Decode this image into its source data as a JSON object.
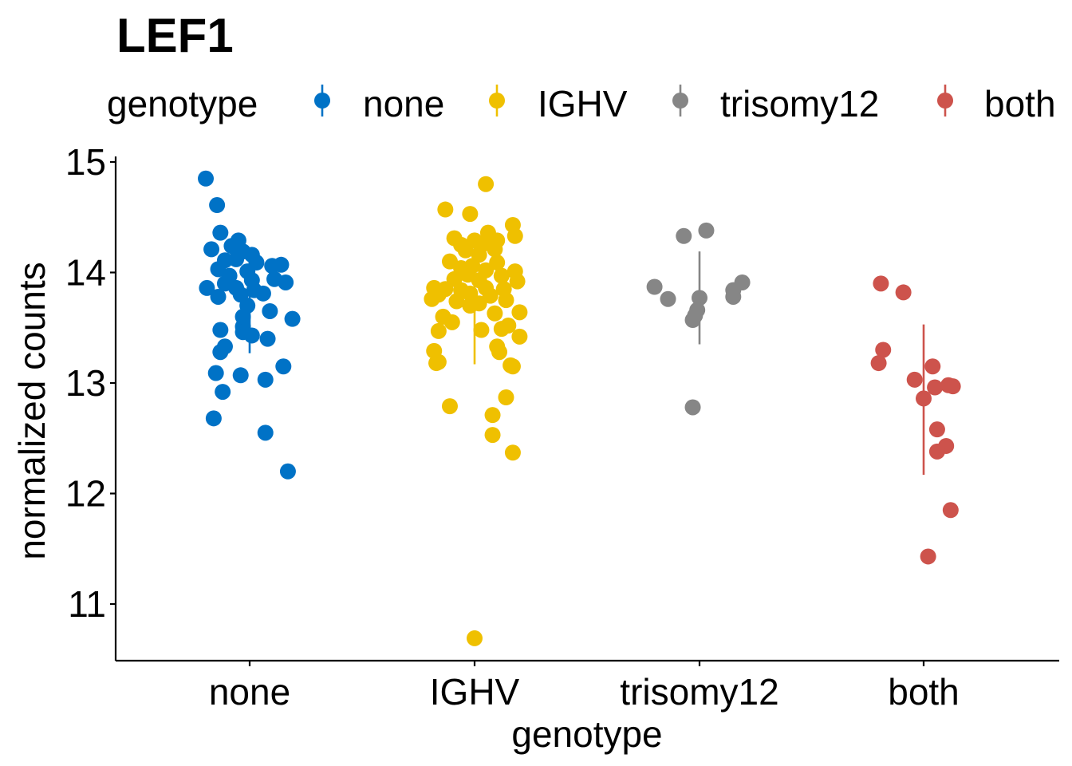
{
  "chart_data": {
    "type": "scatter",
    "title": "LEF1",
    "xlabel": "genotype",
    "ylabel": "normalized counts",
    "ylim": [
      10.5,
      15.05
    ],
    "yticks": [
      11,
      12,
      13,
      14,
      15
    ],
    "grid": false,
    "legend": {
      "title": "genotype",
      "placement": "top",
      "items": [
        "none",
        "IGHV",
        "trisomy12",
        "both"
      ]
    },
    "categories": [
      "none",
      "IGHV",
      "trisomy12",
      "both"
    ],
    "colors": {
      "none": "#0072c6",
      "IGHV": "#efc000",
      "trisomy12": "#868686",
      "both": "#cd534c"
    },
    "series": [
      {
        "name": "none",
        "summary": {
          "mean": 13.73,
          "lower": 13.27,
          "upper": 14.05
        },
        "points": [
          {
            "x": -0.195,
            "y": 14.85
          },
          {
            "x": -0.145,
            "y": 14.61
          },
          {
            "x": -0.13,
            "y": 14.36
          },
          {
            "x": -0.17,
            "y": 14.21
          },
          {
            "x": -0.05,
            "y": 14.29
          },
          {
            "x": -0.08,
            "y": 14.24
          },
          {
            "x": -0.03,
            "y": 14.19
          },
          {
            "x": 0.01,
            "y": 14.16
          },
          {
            "x": -0.11,
            "y": 14.11
          },
          {
            "x": -0.06,
            "y": 14.12
          },
          {
            "x": 0.03,
            "y": 14.09
          },
          {
            "x": -0.14,
            "y": 14.03
          },
          {
            "x": -0.01,
            "y": 14.01
          },
          {
            "x": 0.1,
            "y": 14.06
          },
          {
            "x": 0.14,
            "y": 14.07
          },
          {
            "x": -0.09,
            "y": 13.97
          },
          {
            "x": -0.11,
            "y": 13.9
          },
          {
            "x": 0.01,
            "y": 13.93
          },
          {
            "x": 0.11,
            "y": 13.94
          },
          {
            "x": 0.16,
            "y": 13.91
          },
          {
            "x": -0.19,
            "y": 13.86
          },
          {
            "x": -0.06,
            "y": 13.86
          },
          {
            "x": 0.02,
            "y": 13.84
          },
          {
            "x": -0.14,
            "y": 13.78
          },
          {
            "x": -0.04,
            "y": 13.8
          },
          {
            "x": 0.06,
            "y": 13.81
          },
          {
            "x": -0.01,
            "y": 13.7
          },
          {
            "x": 0.09,
            "y": 13.65
          },
          {
            "x": -0.03,
            "y": 13.6
          },
          {
            "x": 0.19,
            "y": 13.58
          },
          {
            "x": -0.03,
            "y": 13.51
          },
          {
            "x": -0.13,
            "y": 13.48
          },
          {
            "x": -0.03,
            "y": 13.46
          },
          {
            "x": 0.01,
            "y": 13.43
          },
          {
            "x": 0.08,
            "y": 13.4
          },
          {
            "x": -0.11,
            "y": 13.33
          },
          {
            "x": -0.13,
            "y": 13.28
          },
          {
            "x": 0.15,
            "y": 13.15
          },
          {
            "x": -0.15,
            "y": 13.09
          },
          {
            "x": -0.04,
            "y": 13.07
          },
          {
            "x": 0.07,
            "y": 13.03
          },
          {
            "x": -0.12,
            "y": 12.92
          },
          {
            "x": -0.16,
            "y": 12.68
          },
          {
            "x": 0.07,
            "y": 12.55
          },
          {
            "x": 0.17,
            "y": 12.2
          }
        ]
      },
      {
        "name": "IGHV",
        "summary": {
          "mean": 13.78,
          "lower": 13.17,
          "upper": 14.25
        },
        "points": [
          {
            "x": 0.05,
            "y": 14.8
          },
          {
            "x": -0.13,
            "y": 14.57
          },
          {
            "x": -0.02,
            "y": 14.53
          },
          {
            "x": 0.17,
            "y": 14.43
          },
          {
            "x": 0.06,
            "y": 14.36
          },
          {
            "x": 0.18,
            "y": 14.33
          },
          {
            "x": -0.09,
            "y": 14.31
          },
          {
            "x": 0.0,
            "y": 14.29
          },
          {
            "x": 0.1,
            "y": 14.29
          },
          {
            "x": -0.06,
            "y": 14.25
          },
          {
            "x": 0.04,
            "y": 14.26
          },
          {
            "x": -0.04,
            "y": 14.2
          },
          {
            "x": 0.02,
            "y": 14.16
          },
          {
            "x": 0.09,
            "y": 14.21
          },
          {
            "x": -0.11,
            "y": 14.1
          },
          {
            "x": 0.1,
            "y": 14.09
          },
          {
            "x": -0.01,
            "y": 14.06
          },
          {
            "x": -0.06,
            "y": 14.04
          },
          {
            "x": 0.05,
            "y": 14.02
          },
          {
            "x": 0.18,
            "y": 14.01
          },
          {
            "x": -0.03,
            "y": 13.98
          },
          {
            "x": 0.12,
            "y": 13.97
          },
          {
            "x": -0.09,
            "y": 13.94
          },
          {
            "x": 0.02,
            "y": 13.93
          },
          {
            "x": 0.19,
            "y": 13.92
          },
          {
            "x": -0.18,
            "y": 13.86
          },
          {
            "x": -0.13,
            "y": 13.85
          },
          {
            "x": -0.06,
            "y": 13.84
          },
          {
            "x": 0.05,
            "y": 13.86
          },
          {
            "x": 0.13,
            "y": 13.85
          },
          {
            "x": -0.16,
            "y": 13.8
          },
          {
            "x": -0.02,
            "y": 13.81
          },
          {
            "x": 0.07,
            "y": 13.79
          },
          {
            "x": -0.19,
            "y": 13.76
          },
          {
            "x": -0.08,
            "y": 13.74
          },
          {
            "x": -0.02,
            "y": 13.7
          },
          {
            "x": 0.02,
            "y": 13.72
          },
          {
            "x": 0.14,
            "y": 13.75
          },
          {
            "x": 0.09,
            "y": 13.63
          },
          {
            "x": 0.2,
            "y": 13.64
          },
          {
            "x": -0.14,
            "y": 13.6
          },
          {
            "x": -0.1,
            "y": 13.55
          },
          {
            "x": 0.15,
            "y": 13.52
          },
          {
            "x": -0.16,
            "y": 13.47
          },
          {
            "x": 0.03,
            "y": 13.48
          },
          {
            "x": 0.12,
            "y": 13.49
          },
          {
            "x": 0.2,
            "y": 13.42
          },
          {
            "x": 0.1,
            "y": 13.33
          },
          {
            "x": -0.18,
            "y": 13.29
          },
          {
            "x": 0.11,
            "y": 13.28
          },
          {
            "x": -0.16,
            "y": 13.19
          },
          {
            "x": -0.17,
            "y": 13.18
          },
          {
            "x": 0.16,
            "y": 13.16
          },
          {
            "x": 0.17,
            "y": 13.15
          },
          {
            "x": 0.14,
            "y": 12.87
          },
          {
            "x": -0.11,
            "y": 12.79
          },
          {
            "x": 0.08,
            "y": 12.71
          },
          {
            "x": 0.08,
            "y": 12.53
          },
          {
            "x": 0.17,
            "y": 12.37
          },
          {
            "x": 0.0,
            "y": 10.69
          }
        ]
      },
      {
        "name": "trisomy12",
        "summary": {
          "mean": 13.77,
          "lower": 13.35,
          "upper": 14.19
        },
        "points": [
          {
            "x": 0.03,
            "y": 14.38
          },
          {
            "x": -0.07,
            "y": 14.33
          },
          {
            "x": 0.19,
            "y": 13.91
          },
          {
            "x": -0.2,
            "y": 13.87
          },
          {
            "x": 0.15,
            "y": 13.84
          },
          {
            "x": -0.14,
            "y": 13.76
          },
          {
            "x": 0.15,
            "y": 13.78
          },
          {
            "x": 0.0,
            "y": 13.77
          },
          {
            "x": -0.01,
            "y": 13.66
          },
          {
            "x": -0.02,
            "y": 13.61
          },
          {
            "x": -0.03,
            "y": 13.57
          },
          {
            "x": -0.03,
            "y": 12.78
          }
        ]
      },
      {
        "name": "both",
        "summary": {
          "mean": 12.86,
          "lower": 12.17,
          "upper": 13.53
        },
        "points": [
          {
            "x": -0.19,
            "y": 13.9
          },
          {
            "x": -0.09,
            "y": 13.82
          },
          {
            "x": -0.18,
            "y": 13.3
          },
          {
            "x": -0.2,
            "y": 13.18
          },
          {
            "x": 0.04,
            "y": 13.15
          },
          {
            "x": -0.04,
            "y": 13.03
          },
          {
            "x": 0.05,
            "y": 12.96
          },
          {
            "x": 0.11,
            "y": 12.98
          },
          {
            "x": 0.13,
            "y": 12.97
          },
          {
            "x": 0.0,
            "y": 12.86
          },
          {
            "x": 0.06,
            "y": 12.58
          },
          {
            "x": 0.1,
            "y": 12.43
          },
          {
            "x": 0.06,
            "y": 12.38
          },
          {
            "x": 0.12,
            "y": 11.85
          },
          {
            "x": 0.02,
            "y": 11.43
          }
        ]
      }
    ]
  }
}
